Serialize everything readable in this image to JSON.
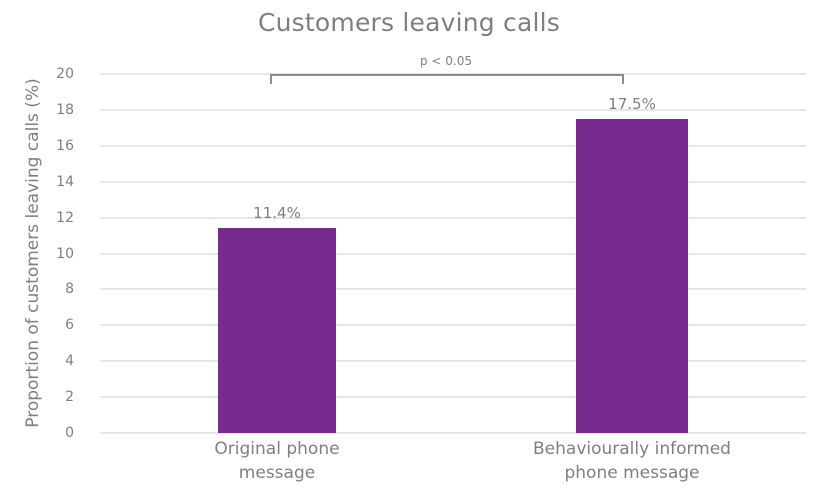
{
  "chart_data": {
    "type": "bar",
    "title": "Customers leaving calls",
    "xlabel": "",
    "ylabel": "Proportion of customers leaving calls (%)",
    "categories": [
      "Original phone message",
      "Behaviourally informed phone message"
    ],
    "category_lines": [
      [
        "Original phone",
        "message"
      ],
      [
        "Behaviourally informed",
        "phone message"
      ]
    ],
    "values": [
      11.4,
      17.5
    ],
    "data_labels": [
      "11.4%",
      "17.5%"
    ],
    "ylim": [
      0,
      20
    ],
    "yticks": [
      "0",
      "2",
      "4",
      "6",
      "8",
      "10",
      "12",
      "14",
      "16",
      "18",
      "20"
    ],
    "grid": true,
    "legend": null,
    "annotation": "p < 0.05",
    "bar_color": "#772b8e"
  }
}
